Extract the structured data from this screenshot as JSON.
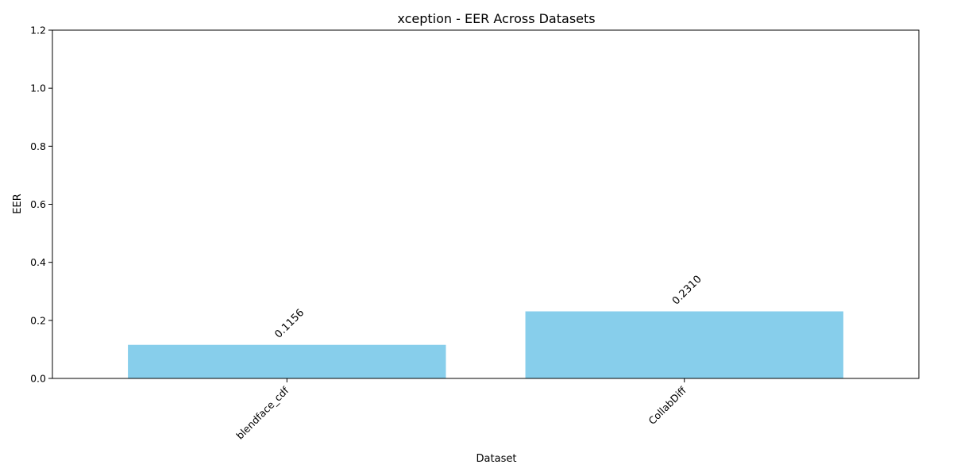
{
  "chart_data": {
    "type": "bar",
    "title": "xception - EER Across Datasets",
    "xlabel": "Dataset",
    "ylabel": "EER",
    "categories": [
      "blendface_cdf",
      "CollabDiff"
    ],
    "values": [
      0.1156,
      0.231
    ],
    "value_labels": [
      "0.1156",
      "0.2310"
    ],
    "ylim": [
      0,
      1.2
    ],
    "yticks": [
      "0.0",
      "0.2",
      "0.4",
      "0.6",
      "0.8",
      "1.0",
      "1.2"
    ],
    "bar_color": "#87ceeb",
    "grid": false,
    "legend": "none"
  }
}
